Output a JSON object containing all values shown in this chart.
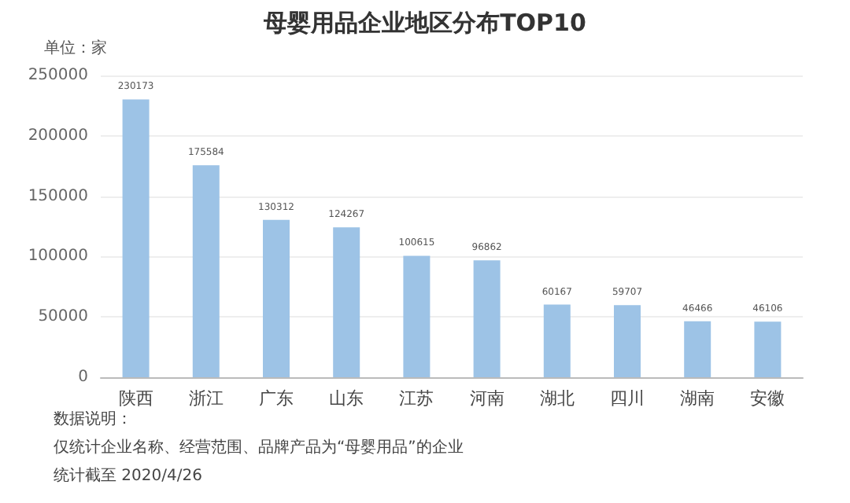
{
  "chart_data": {
    "type": "bar",
    "title": "母婴用品企业地区分布TOP10",
    "categories": [
      "陕西",
      "浙江",
      "广东",
      "山东",
      "江苏",
      "河南",
      "湖北",
      "四川",
      "湖南",
      "安徽"
    ],
    "values": [
      230173,
      175584,
      130312,
      124267,
      100615,
      96862,
      60167,
      59707,
      46466,
      46106
    ],
    "color": "#9dc3e6",
    "ylim": [
      0,
      250000
    ],
    "yticks": [
      0,
      50000,
      100000,
      150000,
      200000,
      250000
    ],
    "grid": "y",
    "data_labels": true,
    "annotations": [
      "单位：家",
      "数据说明：",
      "仅统计企业名称、经营范围、品牌产品为“母婴用品”的企业",
      "统计截至 2020/4/26"
    ]
  }
}
